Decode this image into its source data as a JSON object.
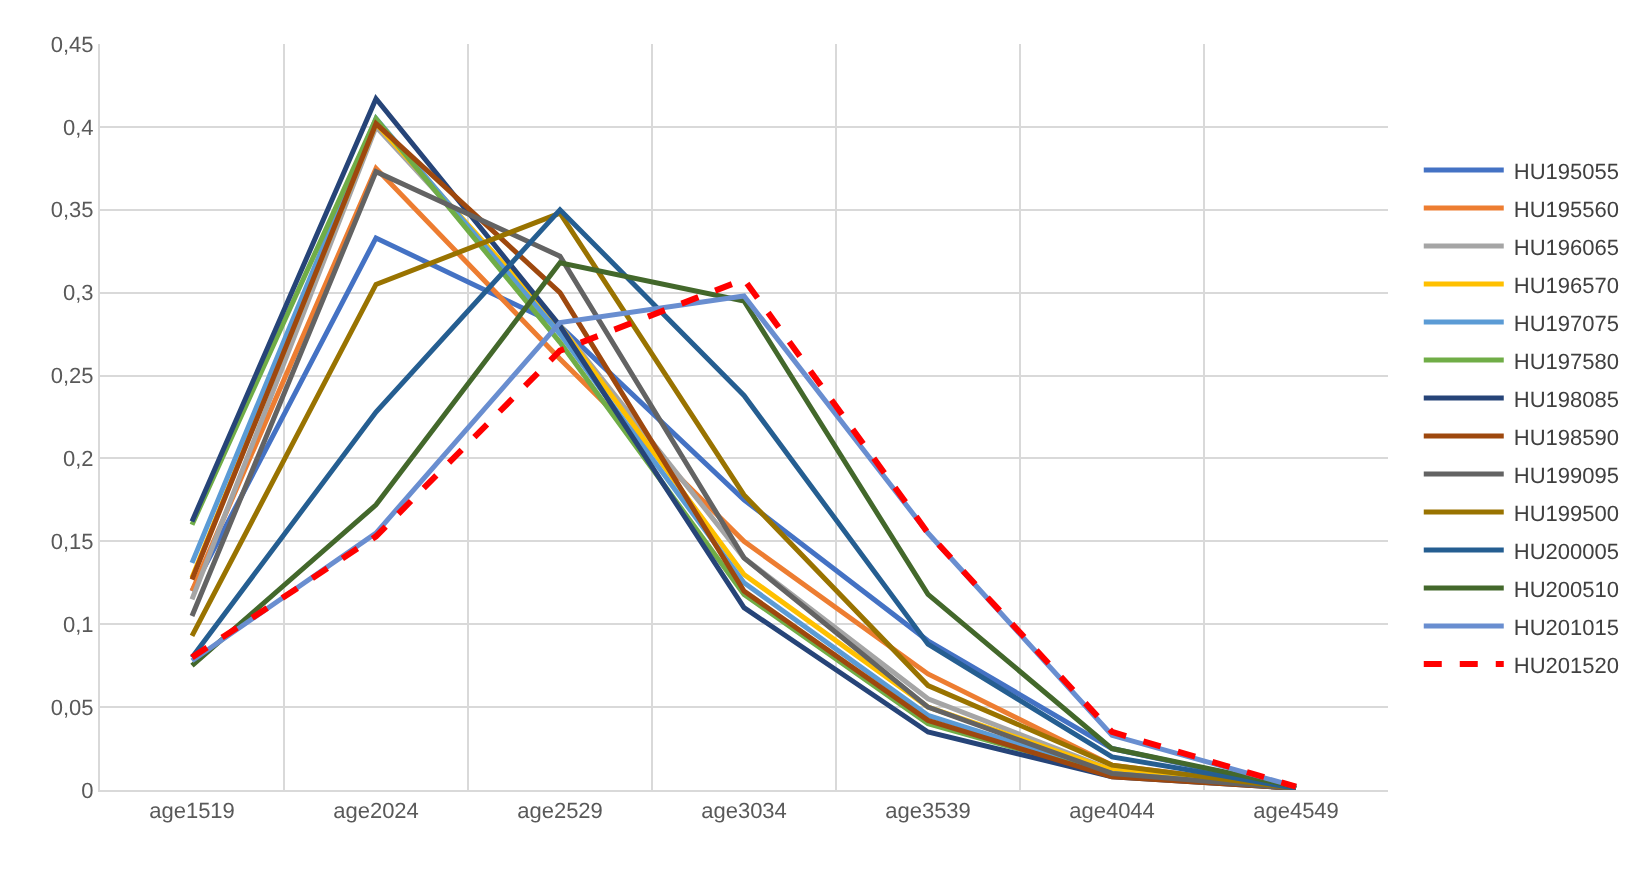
{
  "chart_data": {
    "type": "line",
    "categories": [
      "age1519",
      "age2024",
      "age2529",
      "age3034",
      "age3539",
      "age4044",
      "age4549"
    ],
    "ylim": [
      0,
      0.45
    ],
    "yticks": [
      {
        "value": 0,
        "label": "0"
      },
      {
        "value": 0.05,
        "label": "0,05"
      },
      {
        "value": 0.1,
        "label": "0,1"
      },
      {
        "value": 0.15,
        "label": "0,15"
      },
      {
        "value": 0.2,
        "label": "0,2"
      },
      {
        "value": 0.25,
        "label": "0,25"
      },
      {
        "value": 0.3,
        "label": "0,3"
      },
      {
        "value": 0.35,
        "label": "0,35"
      },
      {
        "value": 0.4,
        "label": "0,4"
      },
      {
        "value": 0.45,
        "label": "0,45"
      }
    ],
    "grid": true,
    "legend": "right",
    "marker": "none",
    "line_style": "solid",
    "series": [
      {
        "name": "HU195055",
        "color": "#4472c4",
        "values": [
          0.12,
          0.333,
          0.28,
          0.175,
          0.09,
          0.025,
          0.001
        ]
      },
      {
        "name": "HU195560",
        "color": "#ed7d31",
        "values": [
          0.12,
          0.375,
          0.26,
          0.15,
          0.07,
          0.015,
          0.001
        ]
      },
      {
        "name": "HU196065",
        "color": "#a5a5a5",
        "values": [
          0.115,
          0.4,
          0.28,
          0.14,
          0.055,
          0.012,
          0.001
        ]
      },
      {
        "name": "HU196570",
        "color": "#ffc000",
        "values": [
          0.128,
          0.402,
          0.28,
          0.13,
          0.05,
          0.012,
          0.001
        ]
      },
      {
        "name": "HU197075",
        "color": "#5b9bd5",
        "values": [
          0.137,
          0.405,
          0.275,
          0.125,
          0.045,
          0.01,
          0.001
        ]
      },
      {
        "name": "HU197580",
        "color": "#70ad47",
        "values": [
          0.16,
          0.405,
          0.27,
          0.118,
          0.04,
          0.009,
          0.001
        ]
      },
      {
        "name": "HU198085",
        "color": "#264478",
        "values": [
          0.162,
          0.417,
          0.28,
          0.11,
          0.035,
          0.008,
          0.001
        ]
      },
      {
        "name": "HU198590",
        "color": "#9e480e",
        "values": [
          0.127,
          0.402,
          0.3,
          0.12,
          0.042,
          0.008,
          0.001
        ]
      },
      {
        "name": "HU199095",
        "color": "#636363",
        "values": [
          0.105,
          0.373,
          0.322,
          0.14,
          0.05,
          0.01,
          0.001
        ]
      },
      {
        "name": "HU199500",
        "color": "#997300",
        "values": [
          0.093,
          0.305,
          0.348,
          0.178,
          0.063,
          0.015,
          0.001
        ]
      },
      {
        "name": "HU200005",
        "color": "#255e91",
        "values": [
          0.08,
          0.228,
          0.35,
          0.238,
          0.088,
          0.02,
          0.001
        ]
      },
      {
        "name": "HU200510",
        "color": "#43682b",
        "values": [
          0.075,
          0.172,
          0.318,
          0.295,
          0.118,
          0.025,
          0.002
        ]
      },
      {
        "name": "HU201015",
        "color": "#698ed0",
        "values": [
          0.078,
          0.155,
          0.282,
          0.298,
          0.155,
          0.033,
          0.002
        ]
      },
      {
        "name": "HU201520",
        "color": "#ff0000",
        "line_style": "dashed",
        "values": [
          0.08,
          0.153,
          0.265,
          0.308,
          0.155,
          0.035,
          0.002
        ]
      }
    ]
  }
}
